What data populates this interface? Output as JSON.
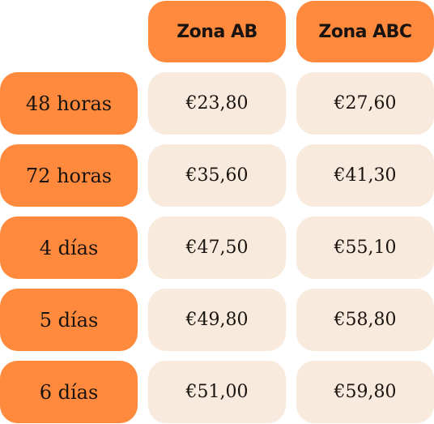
{
  "table": {
    "columns": [
      "Zona AB",
      "Zona ABC"
    ],
    "rows": [
      {
        "label": "48 horas",
        "prices": [
          "€23,80",
          "€27,60"
        ]
      },
      {
        "label": "72 horas",
        "prices": [
          "€35,60",
          "€41,30"
        ]
      },
      {
        "label": "4 días",
        "prices": [
          "€47,50",
          "€55,10"
        ]
      },
      {
        "label": "5 días",
        "prices": [
          "€49,80",
          "€58,80"
        ]
      },
      {
        "label": "6 días",
        "prices": [
          "€51,00",
          "€59,80"
        ]
      }
    ]
  },
  "colors": {
    "header_bg": "#ff8a3d",
    "cell_bg": "#f8eadc",
    "text": "#1a1410"
  }
}
